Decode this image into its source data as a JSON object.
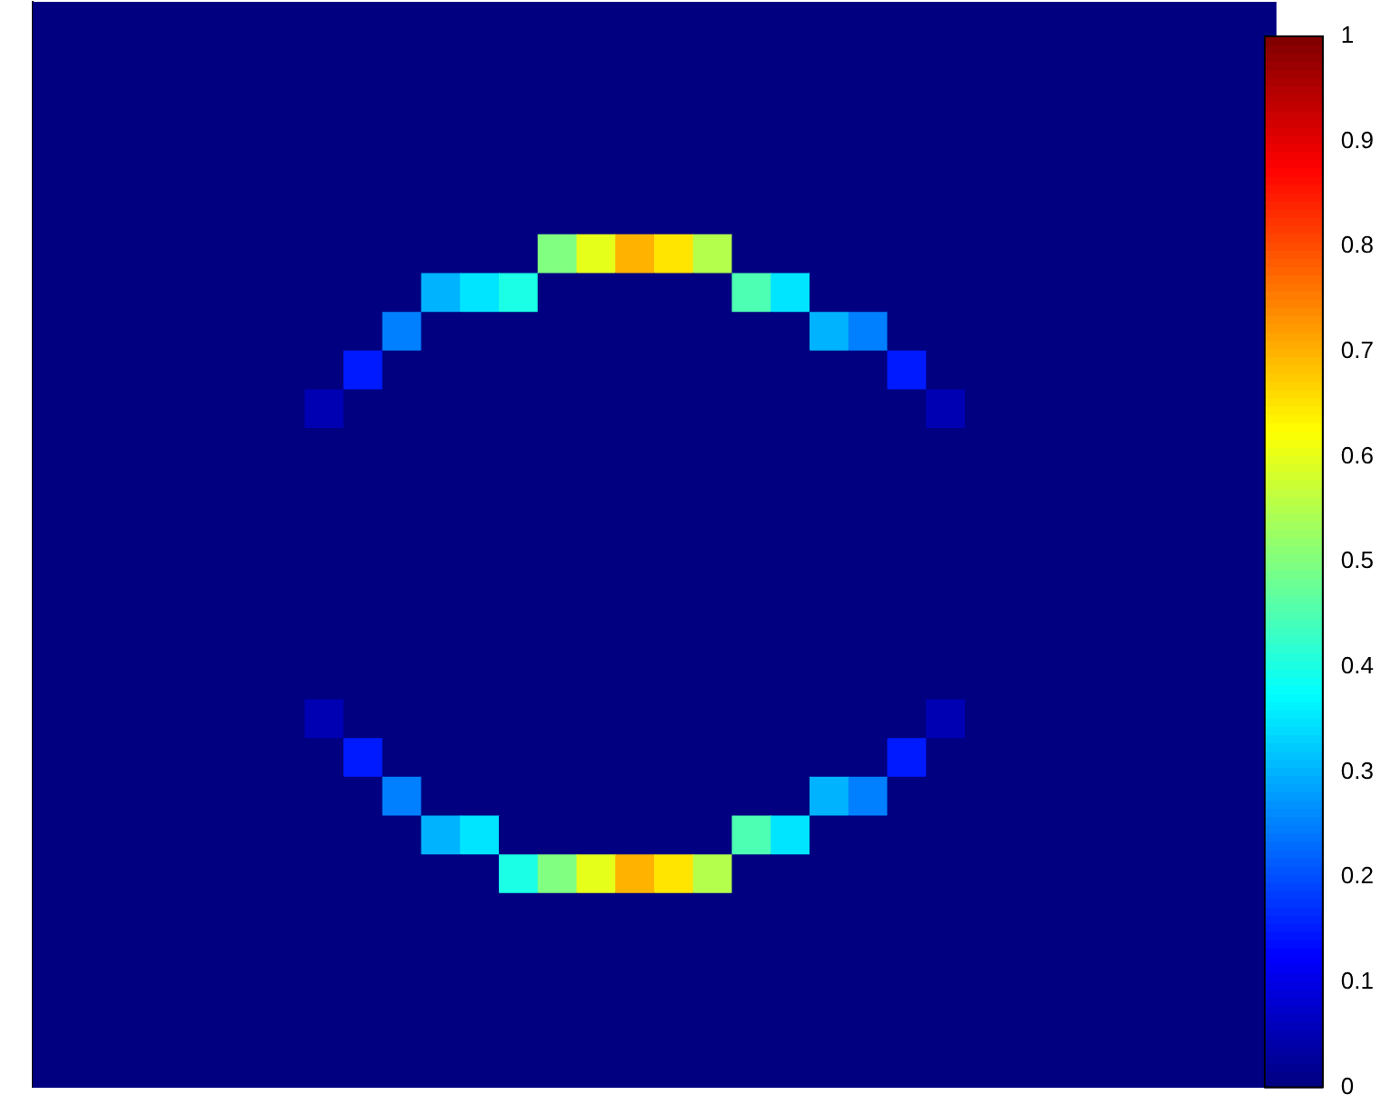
{
  "chart_data": {
    "type": "heatmap",
    "categories": [
      null,
      null,
      null,
      null,
      null,
      null,
      null,
      null,
      null,
      null,
      null,
      null,
      null,
      null,
      null,
      null,
      null,
      null,
      null,
      null,
      null,
      null,
      null,
      null,
      null,
      null,
      null,
      null,
      null,
      null,
      null,
      null
    ],
    "y_categories": [
      null,
      null,
      null,
      null,
      null,
      null,
      null,
      null,
      null,
      null,
      null,
      null,
      null,
      null,
      null,
      null,
      null,
      null,
      null,
      null,
      null,
      null,
      null,
      null,
      null,
      null,
      null,
      null
    ],
    "cells": [
      [
        0,
        0,
        0,
        0,
        0,
        0,
        0,
        0,
        0,
        0,
        0,
        0,
        0,
        0,
        0,
        0,
        0,
        0,
        0,
        0,
        0,
        0,
        0,
        0,
        0,
        0,
        0,
        0,
        0,
        0,
        0,
        0
      ],
      [
        0,
        0,
        0,
        0,
        0,
        0,
        0,
        0,
        0,
        0,
        0,
        0,
        0,
        0,
        0,
        0,
        0,
        0,
        0,
        0,
        0,
        0,
        0,
        0,
        0,
        0,
        0,
        0,
        0,
        0,
        0,
        0
      ],
      [
        0,
        0,
        0,
        0,
        0,
        0,
        0,
        0,
        0,
        0,
        0,
        0,
        0,
        0,
        0,
        0,
        0,
        0,
        0,
        0,
        0,
        0,
        0,
        0,
        0,
        0,
        0,
        0,
        0,
        0,
        0,
        0
      ],
      [
        0,
        0,
        0,
        0,
        0,
        0,
        0,
        0,
        0,
        0,
        0,
        0,
        0,
        0,
        0,
        0,
        0,
        0,
        0,
        0,
        0,
        0,
        0,
        0,
        0,
        0,
        0,
        0,
        0,
        0,
        0,
        0
      ],
      [
        0,
        0,
        0,
        0,
        0,
        0,
        0,
        0,
        0,
        0,
        0,
        0,
        0,
        0,
        0,
        0,
        0,
        0,
        0,
        0,
        0,
        0,
        0,
        0,
        0,
        0,
        0,
        0,
        0,
        0,
        0,
        0
      ],
      [
        0,
        0,
        0,
        0,
        0,
        0,
        0,
        0,
        0,
        0,
        0,
        0,
        0,
        0,
        0,
        0,
        0,
        0,
        0,
        0,
        0,
        0,
        0,
        0,
        0,
        0,
        0,
        0,
        0,
        0,
        0,
        0
      ],
      [
        0,
        0,
        0,
        0,
        0,
        0,
        0,
        0,
        0,
        0,
        0,
        0,
        0,
        0.5,
        0.6,
        0.7,
        0.65,
        0.55,
        0,
        0,
        0,
        0,
        0,
        0,
        0,
        0,
        0,
        0,
        0,
        0,
        0,
        0
      ],
      [
        0,
        0,
        0,
        0,
        0,
        0,
        0,
        0,
        0,
        0,
        0.3,
        0.35,
        0.4,
        0,
        0,
        0,
        0,
        0,
        0.45,
        0.35,
        0,
        0,
        0,
        0,
        0,
        0,
        0,
        0,
        0,
        0,
        0,
        0
      ],
      [
        0,
        0,
        0,
        0,
        0,
        0,
        0,
        0,
        0,
        0.25,
        0,
        0,
        0,
        0,
        0,
        0,
        0,
        0,
        0,
        0,
        0.3,
        0.25,
        0,
        0,
        0,
        0,
        0,
        0,
        0,
        0,
        0,
        0
      ],
      [
        0,
        0,
        0,
        0,
        0,
        0,
        0,
        0,
        0.15,
        0,
        0,
        0,
        0,
        0,
        0,
        0,
        0,
        0,
        0,
        0,
        0,
        0,
        0.15,
        0,
        0,
        0,
        0,
        0,
        0,
        0,
        0,
        0
      ],
      [
        0,
        0,
        0,
        0,
        0,
        0,
        0,
        0.05,
        0,
        0,
        0,
        0,
        0,
        0,
        0,
        0,
        0,
        0,
        0,
        0,
        0,
        0,
        0,
        0.05,
        0,
        0,
        0,
        0,
        0,
        0,
        0,
        0
      ],
      [
        0,
        0,
        0,
        0,
        0,
        0,
        0,
        0,
        0,
        0,
        0,
        0,
        0,
        0,
        0,
        0,
        0,
        0,
        0,
        0,
        0,
        0,
        0,
        0,
        0,
        0,
        0,
        0,
        0,
        0,
        0,
        0
      ],
      [
        0,
        0,
        0,
        0,
        0,
        0,
        0,
        0,
        0,
        0,
        0,
        0,
        0,
        0,
        0,
        0,
        0,
        0,
        0,
        0,
        0,
        0,
        0,
        0,
        0,
        0,
        0,
        0,
        0,
        0,
        0,
        0
      ],
      [
        0,
        0,
        0,
        0,
        0,
        0,
        0,
        0,
        0,
        0,
        0,
        0,
        0,
        0,
        0,
        0,
        0,
        0,
        0,
        0,
        0,
        0,
        0,
        0,
        0,
        0,
        0,
        0,
        0,
        0,
        0,
        0
      ],
      [
        0,
        0,
        0,
        0,
        0,
        0,
        0,
        0,
        0,
        0,
        0,
        0,
        0,
        0,
        0,
        0,
        0,
        0,
        0,
        0,
        0,
        0,
        0,
        0,
        0,
        0,
        0,
        0,
        0,
        0,
        0,
        0
      ],
      [
        0,
        0,
        0,
        0,
        0,
        0,
        0,
        0,
        0,
        0,
        0,
        0,
        0,
        0,
        0,
        0,
        0,
        0,
        0,
        0,
        0,
        0,
        0,
        0,
        0,
        0,
        0,
        0,
        0,
        0,
        0,
        0
      ],
      [
        0,
        0,
        0,
        0,
        0,
        0,
        0,
        0,
        0,
        0,
        0,
        0,
        0,
        0,
        0,
        0,
        0,
        0,
        0,
        0,
        0,
        0,
        0,
        0,
        0,
        0,
        0,
        0,
        0,
        0,
        0,
        0
      ],
      [
        0,
        0,
        0,
        0,
        0,
        0,
        0,
        0,
        0,
        0,
        0,
        0,
        0,
        0,
        0,
        0,
        0,
        0,
        0,
        0,
        0,
        0,
        0,
        0,
        0,
        0,
        0,
        0,
        0,
        0,
        0,
        0
      ],
      [
        0,
        0,
        0,
        0,
        0,
        0,
        0,
        0.05,
        0,
        0,
        0,
        0,
        0,
        0,
        0,
        0,
        0,
        0,
        0,
        0,
        0,
        0,
        0,
        0.05,
        0,
        0,
        0,
        0,
        0,
        0,
        0,
        0
      ],
      [
        0,
        0,
        0,
        0,
        0,
        0,
        0,
        0,
        0.15,
        0,
        0,
        0,
        0,
        0,
        0,
        0,
        0,
        0,
        0,
        0,
        0,
        0,
        0.15,
        0,
        0,
        0,
        0,
        0,
        0,
        0,
        0,
        0
      ],
      [
        0,
        0,
        0,
        0,
        0,
        0,
        0,
        0,
        0,
        0.25,
        0,
        0,
        0,
        0,
        0,
        0,
        0,
        0,
        0,
        0,
        0.3,
        0.25,
        0,
        0,
        0,
        0,
        0,
        0,
        0,
        0,
        0,
        0
      ],
      [
        0,
        0,
        0,
        0,
        0,
        0,
        0,
        0,
        0,
        0,
        0.3,
        0.35,
        0,
        0,
        0,
        0,
        0,
        0,
        0.45,
        0.35,
        0,
        0,
        0,
        0,
        0,
        0,
        0,
        0,
        0,
        0,
        0,
        0
      ],
      [
        0,
        0,
        0,
        0,
        0,
        0,
        0,
        0,
        0,
        0,
        0,
        0,
        0.4,
        0.5,
        0.6,
        0.7,
        0.65,
        0.55,
        0,
        0,
        0,
        0,
        0,
        0,
        0,
        0,
        0,
        0,
        0,
        0,
        0,
        0
      ],
      [
        0,
        0,
        0,
        0,
        0,
        0,
        0,
        0,
        0,
        0,
        0,
        0,
        0,
        0,
        0,
        0,
        0,
        0,
        0,
        0,
        0,
        0,
        0,
        0,
        0,
        0,
        0,
        0,
        0,
        0,
        0,
        0
      ],
      [
        0,
        0,
        0,
        0,
        0,
        0,
        0,
        0,
        0,
        0,
        0,
        0,
        0,
        0,
        0,
        0,
        0,
        0,
        0,
        0,
        0,
        0,
        0,
        0,
        0,
        0,
        0,
        0,
        0,
        0,
        0,
        0
      ],
      [
        0,
        0,
        0,
        0,
        0,
        0,
        0,
        0,
        0,
        0,
        0,
        0,
        0,
        0,
        0,
        0,
        0,
        0,
        0,
        0,
        0,
        0,
        0,
        0,
        0,
        0,
        0,
        0,
        0,
        0,
        0,
        0
      ],
      [
        0,
        0,
        0,
        0,
        0,
        0,
        0,
        0,
        0,
        0,
        0,
        0,
        0,
        0,
        0,
        0,
        0,
        0,
        0,
        0,
        0,
        0,
        0,
        0,
        0,
        0,
        0,
        0,
        0,
        0,
        0,
        0
      ],
      [
        0,
        0,
        0,
        0,
        0,
        0,
        0,
        0,
        0,
        0,
        0,
        0,
        0,
        0,
        0,
        0,
        0,
        0,
        0,
        0,
        0,
        0,
        0,
        0,
        0,
        0,
        0,
        0,
        0,
        0,
        0,
        0
      ]
    ],
    "clim": [
      0,
      1
    ],
    "cticks": [
      0,
      0.1,
      0.2,
      0.3,
      0.4,
      0.5,
      0.6,
      0.7,
      0.8,
      0.9,
      1
    ],
    "tick_labels": false
  }
}
